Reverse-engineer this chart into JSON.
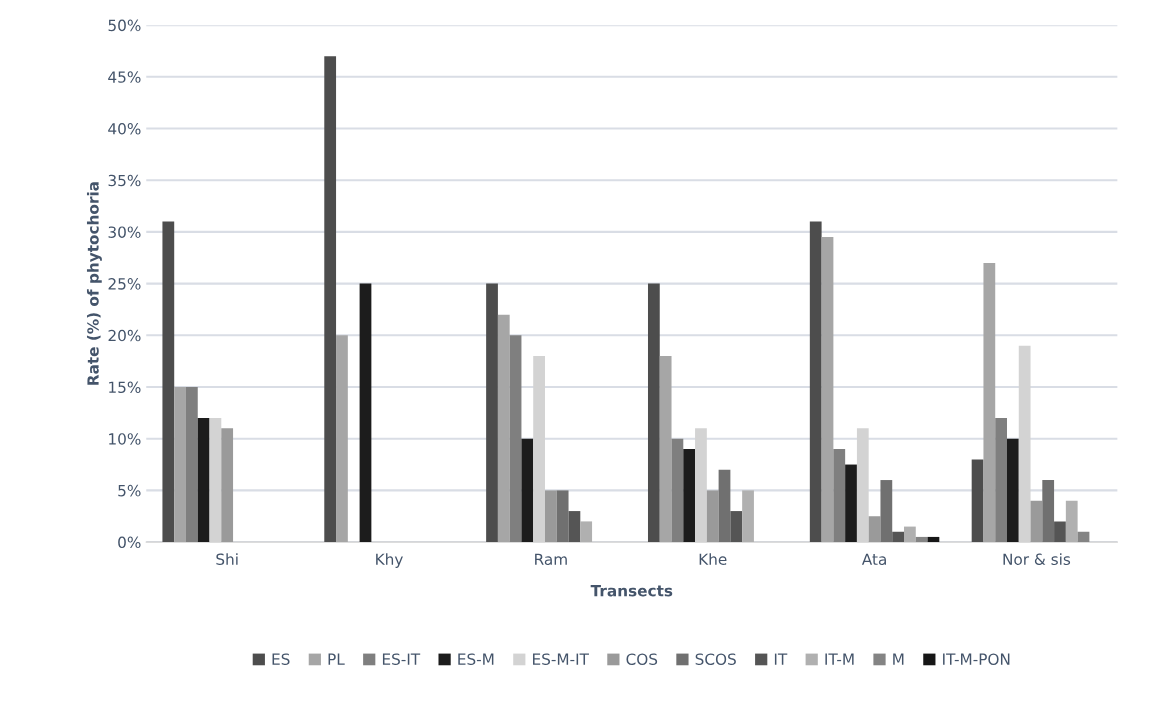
{
  "chart_data": {
    "type": "bar",
    "xlabel": "Transects",
    "ylabel": "Rate (%) of phytochoria",
    "categories": [
      "Shi",
      "Khy",
      "Ram",
      "Khe",
      "Ata",
      "Nor & sis"
    ],
    "series": [
      {
        "name": "ES",
        "color": "#4d4d4d",
        "values": [
          31,
          47,
          25,
          25,
          31,
          8
        ]
      },
      {
        "name": "PL",
        "color": "#a6a6a6",
        "values": [
          15,
          20,
          22,
          18,
          29.5,
          27
        ]
      },
      {
        "name": "ES-IT",
        "color": "#7f7f7f",
        "values": [
          15,
          0,
          20,
          10,
          9,
          12
        ]
      },
      {
        "name": "ES-M",
        "color": "#1c1c1c",
        "values": [
          12,
          25,
          10,
          9,
          7.5,
          10
        ]
      },
      {
        "name": "ES-M-IT",
        "color": "#d3d3d3",
        "values": [
          12,
          0,
          18,
          11,
          11,
          19
        ]
      },
      {
        "name": "COS",
        "color": "#9a9a9a",
        "values": [
          11,
          0,
          5,
          5,
          2.5,
          4
        ]
      },
      {
        "name": "SCOS",
        "color": "#707070",
        "values": [
          0,
          0,
          5,
          7,
          6,
          6
        ]
      },
      {
        "name": "IT",
        "color": "#555555",
        "values": [
          0,
          0,
          3,
          3,
          1,
          2
        ]
      },
      {
        "name": "IT-M",
        "color": "#b0b0b0",
        "values": [
          0,
          0,
          2,
          5,
          1.5,
          4
        ]
      },
      {
        "name": "M",
        "color": "#848484",
        "values": [
          0,
          0,
          0,
          0,
          0.5,
          1
        ]
      },
      {
        "name": "IT-M-PON",
        "color": "#161616",
        "values": [
          0,
          0,
          0,
          0,
          0.5,
          0
        ]
      }
    ],
    "ylim": [
      0,
      50
    ],
    "yticks": [
      {
        "value": 0,
        "label": "0%"
      },
      {
        "value": 5,
        "label": "5%"
      },
      {
        "value": 10,
        "label": "10%"
      },
      {
        "value": 15,
        "label": "15%"
      },
      {
        "value": 20,
        "label": "20%"
      },
      {
        "value": 25,
        "label": "25%"
      },
      {
        "value": 30,
        "label": "30%"
      },
      {
        "value": 35,
        "label": "35%"
      },
      {
        "value": 40,
        "label": "40%"
      },
      {
        "value": 45,
        "label": "45%"
      },
      {
        "value": 50,
        "label": "50%"
      }
    ],
    "grid": "y",
    "legend": "bottom"
  }
}
